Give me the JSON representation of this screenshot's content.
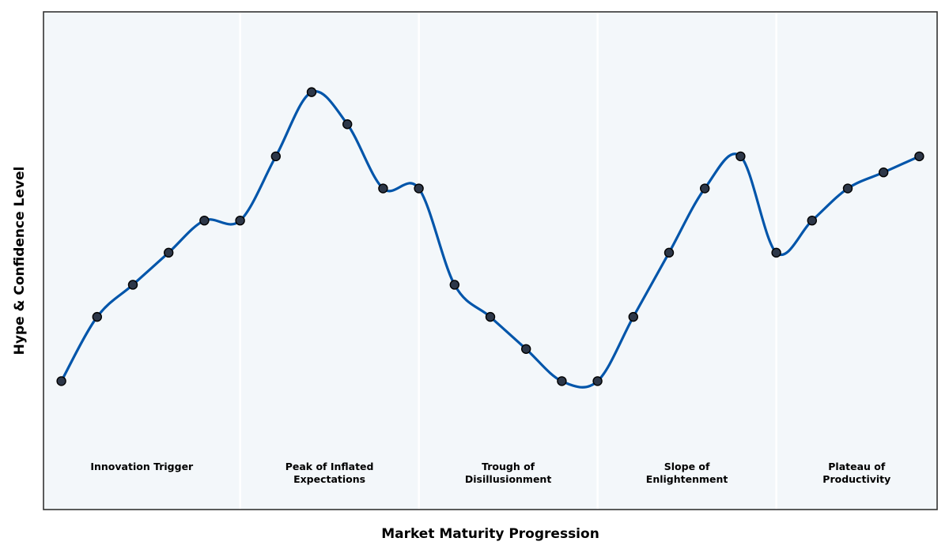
{
  "chart_data": {
    "type": "line",
    "title": "",
    "xlabel": "Market Maturity Progression",
    "ylabel": "Hype & Confidence Level",
    "xlim": [
      -0.5,
      24.5
    ],
    "ylim": [
      0,
      31
    ],
    "x": [
      0,
      1,
      2,
      3,
      4,
      5,
      6,
      7,
      8,
      9,
      10,
      11,
      12,
      13,
      14,
      15,
      16,
      17,
      18,
      19,
      20,
      21,
      22,
      23,
      24
    ],
    "series": [
      {
        "values": [
          8,
          12,
          14,
          16,
          18,
          18,
          22,
          26,
          24,
          20,
          20,
          14,
          12,
          10,
          8,
          8,
          12,
          16,
          20,
          22,
          16,
          18,
          20,
          21,
          22
        ]
      }
    ],
    "phases": [
      {
        "label": "Innovation Trigger",
        "from": -0.5,
        "to": 5
      },
      {
        "label": "Peak of Inflated\nExpectations",
        "from": 5,
        "to": 10
      },
      {
        "label": "Trough of\nDisillusionment",
        "from": 10,
        "to": 15
      },
      {
        "label": "Slope of\nEnlightenment",
        "from": 15,
        "to": 20
      },
      {
        "label": "Plateau of\nProductivity",
        "from": 20,
        "to": 24.5
      }
    ],
    "grid": false,
    "legend": "none",
    "colors": {
      "line": "#0055AA",
      "marker_fill": "#2D3748",
      "marker_edge": "#000000",
      "background": "#F3F7FA",
      "phase_divider": "#FFFFFF",
      "frame": "#333333"
    }
  }
}
